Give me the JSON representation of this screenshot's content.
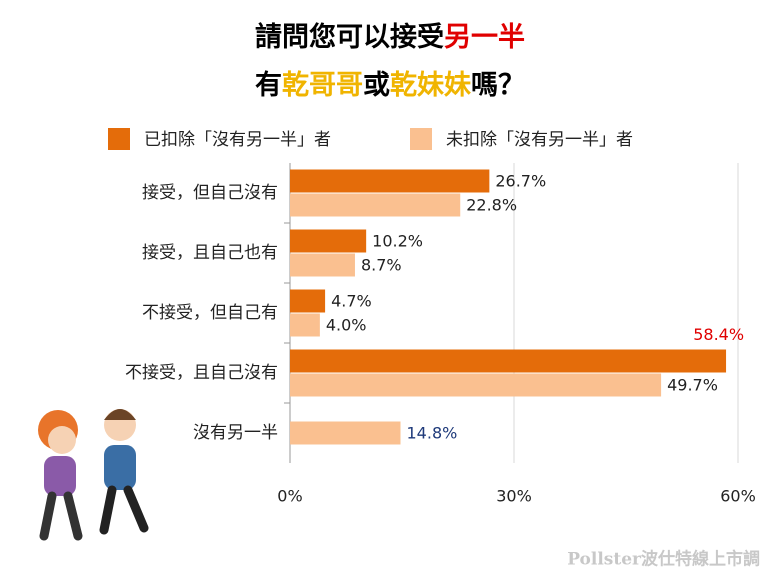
{
  "chart_data": {
    "type": "hbar",
    "title_lines": [
      [
        {
          "text": "請問您可以接受",
          "color": "#000000"
        },
        {
          "text": "另一半",
          "color": "#e00000"
        }
      ],
      [
        {
          "text": "有",
          "color": "#000000"
        },
        {
          "text": "乾哥哥",
          "color": "#f0b400"
        },
        {
          "text": "或",
          "color": "#000000"
        },
        {
          "text": "乾妹妹",
          "color": "#f0b400"
        },
        {
          "text": "嗎？",
          "color": "#000000"
        }
      ]
    ],
    "categories": [
      "接受，但自己沒有",
      "接受，且自己也有",
      "不接受，但自己有",
      "不接受，且自己沒有",
      "沒有另一半"
    ],
    "series": [
      {
        "name": "已扣除「沒有另一半」者",
        "color": "#e46c0a",
        "values": [
          26.7,
          10.2,
          4.7,
          58.4,
          null
        ],
        "value_labels": [
          "26.7%",
          "10.2%",
          "4.7%",
          "58.4%",
          null
        ],
        "value_label_colors": [
          "#222222",
          "#222222",
          "#222222",
          "#e00000",
          null
        ]
      },
      {
        "name": "未扣除「沒有另一半」者",
        "color": "#fac090",
        "values": [
          22.8,
          8.7,
          4.0,
          49.7,
          14.8
        ],
        "value_labels": [
          "22.8%",
          "8.7%",
          "4.0%",
          "49.7%",
          "14.8%"
        ],
        "value_label_colors": [
          "#222222",
          "#222222",
          "#222222",
          "#222222",
          "#1f3a7a"
        ]
      }
    ],
    "xlim": [
      0,
      60
    ],
    "xticks": [
      {
        "value": 0,
        "label": "0%"
      },
      {
        "value": 30,
        "label": "30%"
      },
      {
        "value": 60,
        "label": "60%"
      }
    ],
    "grid": true,
    "legend": "top",
    "watermark": "Pollster波仕特線上市調"
  }
}
